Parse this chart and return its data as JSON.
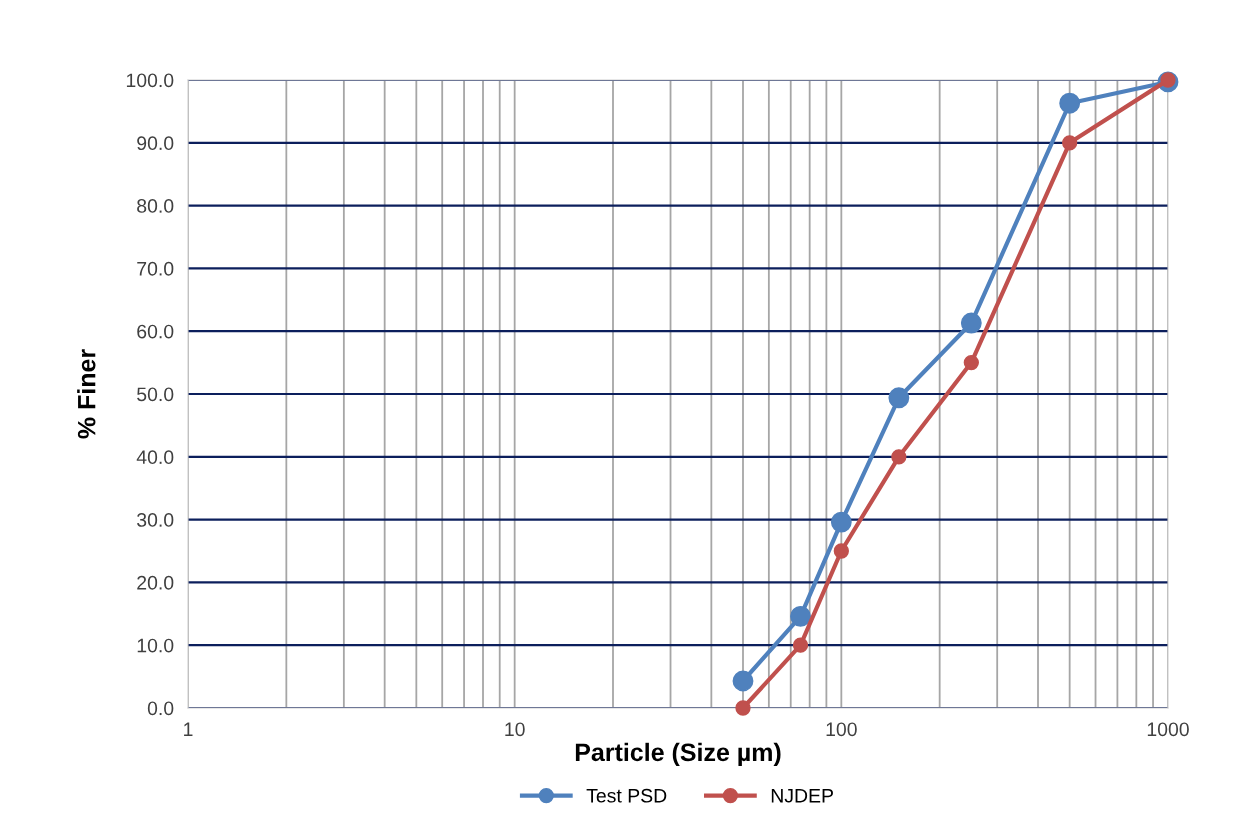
{
  "chart_data": {
    "type": "line",
    "xlabel": "Particle (Size µm)",
    "ylabel": "% Finer",
    "log": "x",
    "grid": true,
    "legend": "bottom",
    "marker": "circle",
    "line_style": "solid",
    "xlim": [
      1,
      1000
    ],
    "xticks": [
      1,
      10,
      100,
      1000
    ],
    "ylim": [
      0,
      100
    ],
    "yticks": [
      {
        "value": 0,
        "label": "0.0"
      },
      {
        "value": 10,
        "label": "10.0"
      },
      {
        "value": 20,
        "label": "20.0"
      },
      {
        "value": 30,
        "label": "30.0"
      },
      {
        "value": 40,
        "label": "40.0"
      },
      {
        "value": 50,
        "label": "50.0"
      },
      {
        "value": 60,
        "label": "60.0"
      },
      {
        "value": 70,
        "label": "70.0"
      },
      {
        "value": 80,
        "label": "80.0"
      },
      {
        "value": 90,
        "label": "90.0"
      },
      {
        "value": 100,
        "label": "100.0"
      }
    ],
    "x": [
      50,
      75,
      100,
      150,
      250,
      500,
      1000
    ],
    "series": [
      {
        "name": "Test PSD",
        "color": "#4f81bd",
        "values": [
          4.3,
          14.6,
          29.6,
          49.4,
          61.3,
          96.3,
          99.7
        ]
      },
      {
        "name": "NJDEP",
        "color": "#c0504d",
        "values": [
          0,
          10,
          25,
          40,
          55,
          90,
          100
        ]
      }
    ]
  }
}
